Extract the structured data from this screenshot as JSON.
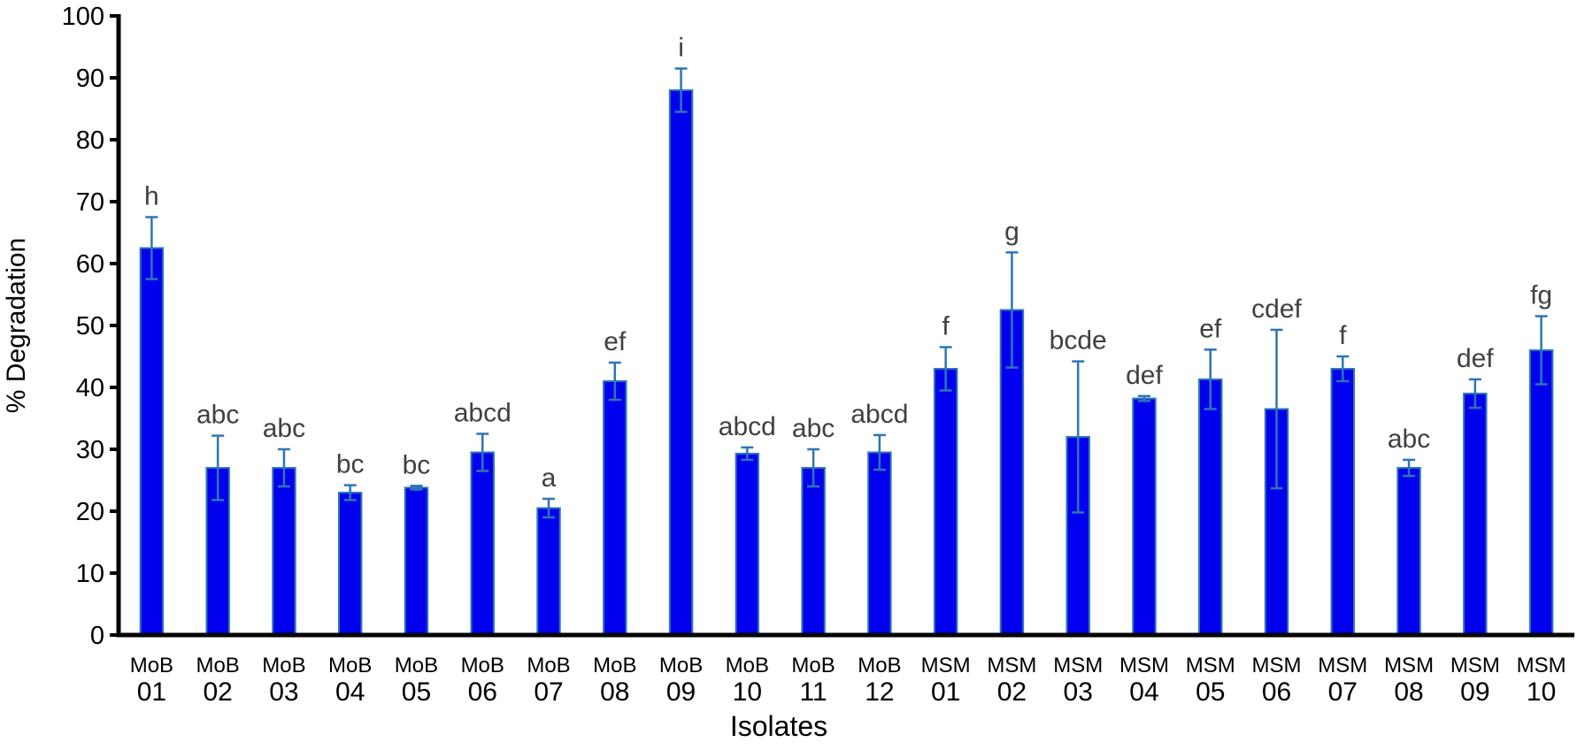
{
  "chart_data": {
    "type": "bar",
    "x_label": "Isolates",
    "y_label": "% Degradation",
    "categories": [
      [
        "MoB",
        "01"
      ],
      [
        "MoB",
        "02"
      ],
      [
        "MoB",
        "03"
      ],
      [
        "MoB",
        "04"
      ],
      [
        "MoB",
        "05"
      ],
      [
        "MoB",
        "06"
      ],
      [
        "MoB",
        "07"
      ],
      [
        "MoB",
        "08"
      ],
      [
        "MoB",
        "09"
      ],
      [
        "MoB",
        "10"
      ],
      [
        "MoB",
        "11"
      ],
      [
        "MoB",
        "12"
      ],
      [
        "MSM",
        "01"
      ],
      [
        "MSM",
        "02"
      ],
      [
        "MSM",
        "03"
      ],
      [
        "MSM",
        "04"
      ],
      [
        "MSM",
        "05"
      ],
      [
        "MSM",
        "06"
      ],
      [
        "MSM",
        "07"
      ],
      [
        "MSM",
        "08"
      ],
      [
        "MSM",
        "09"
      ],
      [
        "MSM",
        "10"
      ]
    ],
    "values": [
      62.5,
      27,
      27,
      23,
      23.8,
      29.5,
      20.5,
      41,
      88,
      29.3,
      27,
      29.5,
      43,
      52.5,
      32,
      38.2,
      41.3,
      36.5,
      43,
      27,
      39,
      46
    ],
    "errors": [
      5,
      5.2,
      3,
      1.2,
      0.3,
      3,
      1.5,
      3,
      3.5,
      1,
      3,
      2.8,
      3.5,
      9.3,
      12.2,
      0.4,
      4.8,
      12.8,
      2,
      1.3,
      2.3,
      5.5
    ],
    "annotations": [
      "h",
      "abc",
      "abc",
      "bc",
      "bc",
      "abcd",
      "a",
      "ef",
      "i",
      "abcd",
      "abc",
      "abcd",
      "f",
      "g",
      "bcde",
      "def",
      "ef",
      "cdef",
      "f",
      "abc",
      "def",
      "fg"
    ],
    "color": "#0000ee",
    "error_color": "#2e75b6",
    "ylim": [
      0,
      100
    ],
    "yticks": [
      0,
      10,
      20,
      30,
      40,
      50,
      60,
      70,
      80,
      90,
      100
    ],
    "grid": false
  }
}
